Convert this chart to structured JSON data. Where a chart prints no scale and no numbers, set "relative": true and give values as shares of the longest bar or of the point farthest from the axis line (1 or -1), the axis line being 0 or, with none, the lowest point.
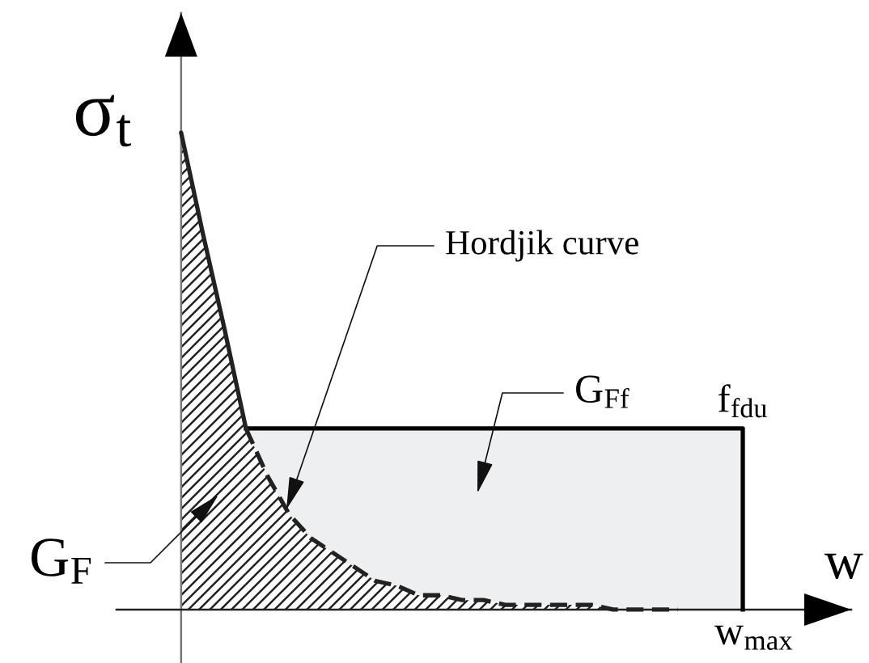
{
  "chart_data": {
    "type": "area",
    "relative": true,
    "xlabel": "w",
    "ylabel": "σ$_{t}$",
    "categories": [
      null,
      null,
      null,
      null,
      null,
      null,
      null,
      null,
      null,
      null,
      null,
      null,
      null,
      null,
      null,
      null,
      null,
      null,
      null,
      null,
      null,
      null,
      null,
      null,
      null,
      null,
      null
    ],
    "series": [
      {
        "color": "#eeeff1",
        "line_style": "solid",
        "values": [
          null,
          null,
          null,
          0.38,
          0.38,
          0.38,
          0.38,
          0.38,
          0.38,
          0.38,
          0.38,
          0.38,
          0.38,
          0.38,
          0.38,
          0.38,
          0.38,
          0.38,
          0.38,
          0.38,
          0.38,
          0.38,
          0.38,
          0.38,
          0.38,
          0.38,
          0.38
        ]
      },
      {
        "color": "#222222",
        "line_style": "solid",
        "values": [
          1,
          0.79,
          0.59,
          0.38,
          null,
          null,
          null,
          null,
          null,
          null,
          null,
          null,
          null,
          null,
          null,
          null,
          null,
          null,
          null,
          null,
          null,
          null,
          null,
          null,
          null,
          null,
          null
        ]
      },
      {
        "color": "#222222",
        "line_style": "dashed",
        "values": [
          null,
          null,
          null,
          0.38,
          0.28,
          0.2,
          0.15,
          0.12,
          0.09,
          0.06,
          0.05,
          0.03,
          0.03,
          0.02,
          0.02,
          0.01,
          0.01,
          0.01,
          0.01,
          0.01,
          0,
          0,
          0,
          0,
          null,
          null,
          null
        ]
      }
    ],
    "annotations": [
      "Hordjik curve",
      "G$_{Ff}$",
      "f$_{fdu}$",
      "G$_{F}$",
      "w$_{max}$"
    ]
  }
}
